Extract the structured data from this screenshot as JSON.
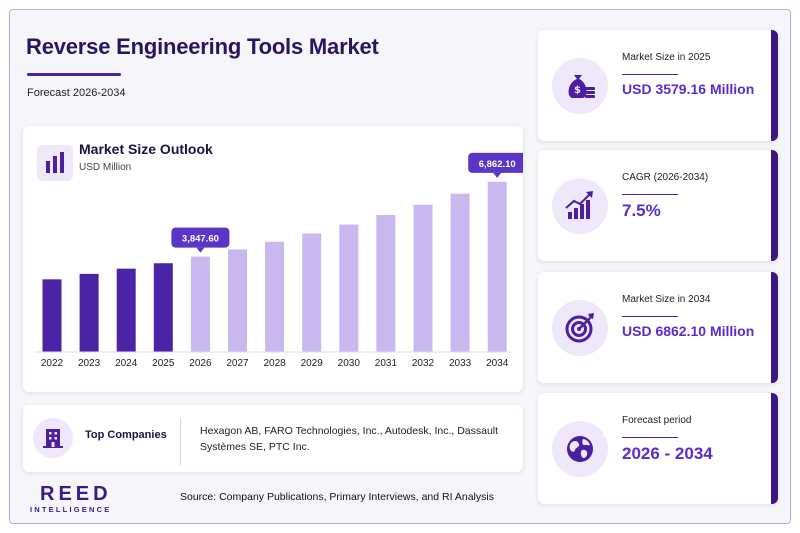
{
  "header": {
    "title": "Reverse Engineering Tools Market",
    "subtitle": "Forecast 2026-2034"
  },
  "chart_card": {
    "title": "Market Size Outlook",
    "unit": "USD Million",
    "icon": "bar-chart-icon"
  },
  "chart_data": {
    "type": "bar",
    "title": "Market Size Outlook",
    "ylabel": "USD Million",
    "categories": [
      "2022",
      "2023",
      "2024",
      "2025",
      "2026",
      "2027",
      "2028",
      "2029",
      "2030",
      "2031",
      "2032",
      "2033",
      "2034"
    ],
    "values": [
      2930,
      3150,
      3360,
      3579.16,
      3847.6,
      4136,
      4446,
      4780,
      5138,
      5524,
      5938,
      6383,
      6862.1
    ],
    "ylim": [
      0,
      7500
    ],
    "grid": false,
    "callouts": [
      {
        "category": "2026",
        "label": "3,847.60"
      },
      {
        "category": "2034",
        "label": "6,862.10"
      }
    ],
    "colors": {
      "historical": "#4b24a6",
      "forecast": "#c9b8f0",
      "callout": "#5b35c8"
    }
  },
  "companies": {
    "label": "Top Companies",
    "text": "Hexagon AB, FARO Technologies, Inc., Autodesk, Inc., Dassault Systèmes SE, PTC Inc.",
    "icon": "building-icon"
  },
  "footer": {
    "logo_top": "REED",
    "logo_bottom": "INTELLIGENCE",
    "source": "Source: Company Publications, Primary Interviews, and RI Analysis"
  },
  "stats": [
    {
      "label": "Market Size in 2025",
      "value": "USD 3579.16 Million",
      "icon": "money-bag-icon"
    },
    {
      "label": "CAGR (2026-2034)",
      "value": "7.5%",
      "icon": "growth-chart-icon"
    },
    {
      "label": "Market Size in 2034",
      "value": "USD 6862.10 Million",
      "icon": "target-icon"
    },
    {
      "label": "Forecast period",
      "value": "2026 - 2034",
      "icon": "globe-icon"
    }
  ],
  "colors": {
    "brand": "#3d1680",
    "accent": "#5a2bd0",
    "bubble": "#efe7fa"
  }
}
